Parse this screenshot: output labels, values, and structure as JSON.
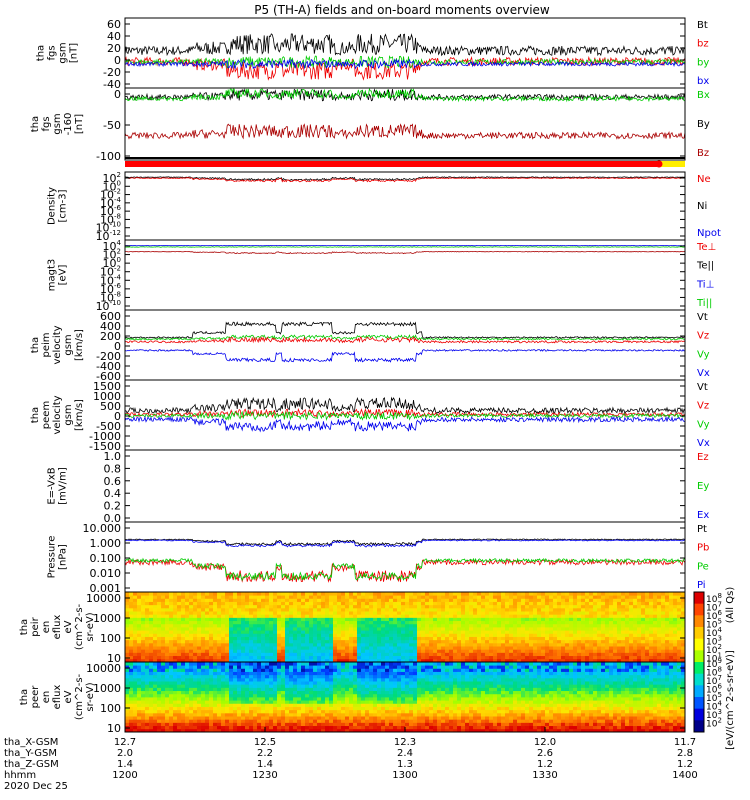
{
  "title": "P5 (TH-A) fields and on-board moments overview",
  "chart_data": [
    {
      "type": "line",
      "ylabel": [
        "tha",
        "fgs",
        "gsm",
        "[nT]"
      ],
      "yticks": [
        "60",
        "40",
        "20",
        "0",
        "-20",
        "-40"
      ],
      "ylim": [
        -40,
        65
      ],
      "legend": [
        {
          "label": "Bt",
          "color": "#000000"
        },
        {
          "label": "bz",
          "color": "#ee0000"
        },
        {
          "label": "by",
          "color": "#00cc00"
        },
        {
          "label": "bx",
          "color": "#0000ee"
        }
      ],
      "series": [
        {
          "name": "Bt",
          "color": "#000000",
          "base": 16,
          "noise": 7,
          "events": 1,
          "evAmp": 10
        },
        {
          "name": "bz",
          "color": "#ee0000",
          "base": 0,
          "noise": 6,
          "events": 1,
          "evAmp": -14
        },
        {
          "name": "by",
          "color": "#00cc00",
          "base": -1,
          "noise": 4,
          "events": 1,
          "evAmp": 0
        },
        {
          "name": "bx",
          "color": "#0000ee",
          "base": -4,
          "noise": 3,
          "events": 1,
          "evAmp": 0
        }
      ]
    },
    {
      "type": "line",
      "ylabel": [
        "tha",
        "fgs",
        "gsm",
        "-160",
        "[nT]"
      ],
      "yticks": [
        "0",
        "-50",
        "-100"
      ],
      "ylim": [
        -120,
        15
      ],
      "legend": [
        {
          "label": "Bx",
          "color": "#00cc00"
        },
        {
          "label": "By",
          "color": "#000000"
        },
        {
          "label": "Bz",
          "color": "#aa0000"
        }
      ],
      "series": [
        {
          "name": "By",
          "color": "#000000",
          "base": -2,
          "noise": 5,
          "events": 1,
          "evAmp": 4
        },
        {
          "name": "Bx",
          "color": "#00cc00",
          "base": -5,
          "noise": 4,
          "events": 1,
          "evAmp": 10
        },
        {
          "name": "Bz",
          "color": "#aa0000",
          "base": -74,
          "noise": 6,
          "events": 1,
          "evAmp": 8
        }
      ]
    },
    {
      "type": "line",
      "ylabel": [
        "Density",
        "[cm-3]"
      ],
      "yticks": [
        "10^2",
        "10^0",
        "10^-2",
        "10^-4",
        "10^-6",
        "10^-8",
        "10^-10",
        "10^-12"
      ],
      "ylim": [
        -13,
        2.5
      ],
      "log": true,
      "legend": [
        {
          "label": "Ne",
          "color": "#ee0000"
        },
        {
          "label": "Ni",
          "color": "#000000"
        },
        {
          "label": "Npot",
          "color": "#0000ee"
        }
      ],
      "series": [
        {
          "name": "Ni",
          "color": "#000000",
          "base": 1.3,
          "noise": 0.1,
          "events": 1,
          "evAmp": -0.5
        },
        {
          "name": "Ne",
          "color": "#ee0000",
          "base": 1.1,
          "noise": 0.1,
          "events": 1,
          "evAmp": -0.6
        }
      ]
    },
    {
      "type": "line",
      "ylabel": [
        "magt3",
        "[eV]"
      ],
      "yticks": [
        "10^4",
        "10^2",
        "10^0",
        "10^-2",
        "10^-4",
        "10^-6",
        "10^-8",
        "10^-10"
      ],
      "ylim": [
        -10.5,
        4.5
      ],
      "log": true,
      "legend": [
        {
          "label": "Te⊥",
          "color": "#ee0000"
        },
        {
          "label": "Te||",
          "color": "#000000"
        },
        {
          "label": "Ti⊥",
          "color": "#0000ee"
        },
        {
          "label": "Ti||",
          "color": "#00cc00"
        }
      ],
      "series": [
        {
          "name": "Ti",
          "color": "#0000ee",
          "base": 3.3,
          "noise": 0.05,
          "events": 0,
          "evAmp": 0
        },
        {
          "name": "Ti||",
          "color": "#00cc00",
          "base": 3.0,
          "noise": 0.05,
          "events": 0,
          "evAmp": 0
        },
        {
          "name": "Te",
          "color": "#aa0000",
          "base": 2.0,
          "noise": 0.05,
          "events": 1,
          "evAmp": -0.3
        }
      ]
    },
    {
      "type": "line",
      "ylabel": [
        "tha",
        "peim",
        "velocity",
        "gsm",
        "[km/s]"
      ],
      "yticks": [
        "600",
        "400",
        "200",
        "0",
        "-200",
        "-400",
        "-600"
      ],
      "ylim": [
        -650,
        650
      ],
      "legend": [
        {
          "label": "Vt",
          "color": "#000000"
        },
        {
          "label": "Vz",
          "color": "#ee0000"
        },
        {
          "label": "Vy",
          "color": "#00cc00"
        },
        {
          "label": "Vx",
          "color": "#0000ee"
        }
      ],
      "series": [
        {
          "name": "Vt",
          "color": "#000000",
          "base": 140,
          "noise": 15,
          "events": 1,
          "evAmp": 250
        },
        {
          "name": "Vy",
          "color": "#00cc00",
          "base": 110,
          "noise": 15,
          "events": 1,
          "evAmp": 40
        },
        {
          "name": "Vz",
          "color": "#ee0000",
          "base": 60,
          "noise": 20,
          "events": 1,
          "evAmp": 40
        },
        {
          "name": "Vx",
          "color": "#0000ee",
          "base": -100,
          "noise": 15,
          "events": 1,
          "evAmp": -180
        }
      ]
    },
    {
      "type": "line",
      "ylabel": [
        "tha",
        "peem",
        "velocity",
        "gsm",
        "[km/s]"
      ],
      "yticks": [
        "1500",
        "1000",
        "500",
        "0",
        "-500",
        "-1000",
        "-1500"
      ],
      "ylim": [
        -1550,
        1550
      ],
      "legend": [
        {
          "label": "Vt",
          "color": "#000000"
        },
        {
          "label": "Vz",
          "color": "#ee0000"
        },
        {
          "label": "Vy",
          "color": "#00cc00"
        },
        {
          "label": "Vx",
          "color": "#0000ee"
        }
      ],
      "series": [
        {
          "name": "Vt",
          "color": "#000000",
          "base": 200,
          "noise": 120,
          "events": 1,
          "evAmp": 300
        },
        {
          "name": "Vz",
          "color": "#ee0000",
          "base": 30,
          "noise": 80,
          "events": 1,
          "evAmp": 50
        },
        {
          "name": "Vy",
          "color": "#00cc00",
          "base": -30,
          "noise": 80,
          "events": 1,
          "evAmp": 0
        },
        {
          "name": "Vx",
          "color": "#0000ee",
          "base": -200,
          "noise": 100,
          "events": 1,
          "evAmp": -300
        }
      ]
    },
    {
      "type": "line",
      "ylabel": [
        "E=-VxB",
        "[mV/m]"
      ],
      "yticks": [
        "1.0",
        "0.8",
        "0.6",
        "0.4",
        "0.2",
        "0.0"
      ],
      "ylim": [
        0,
        1.0
      ],
      "legend": [
        {
          "label": "Ez",
          "color": "#ee0000"
        },
        {
          "label": "Ey",
          "color": "#00cc00"
        },
        {
          "label": "Ex",
          "color": "#0000ee"
        }
      ],
      "series": []
    },
    {
      "type": "line",
      "ylabel": [
        "Pressure",
        "[nPa]"
      ],
      "yticks": [
        "10.000",
        "1.000",
        "0.100",
        "0.010",
        "0.001"
      ],
      "ylim": [
        -3,
        1
      ],
      "log": true,
      "legend": [
        {
          "label": "Pt",
          "color": "#000000"
        },
        {
          "label": "Pb",
          "color": "#ee0000"
        },
        {
          "label": "Pe",
          "color": "#00cc00"
        },
        {
          "label": "Pi",
          "color": "#0000ee"
        }
      ],
      "series": [
        {
          "name": "Pt",
          "color": "#000000",
          "base": 0.0,
          "noise": 0.03,
          "events": 1,
          "evAmp": -0.25
        },
        {
          "name": "Pi",
          "color": "#0000ee",
          "base": -0.05,
          "noise": 0.03,
          "events": 1,
          "evAmp": -0.3
        },
        {
          "name": "Pb",
          "color": "#ee0000",
          "base": -1.3,
          "noise": 0.15,
          "events": 1,
          "evAmp": -0.8
        },
        {
          "name": "Pe",
          "color": "#00cc00",
          "base": -1.2,
          "noise": 0.1,
          "events": 1,
          "evAmp": -0.9
        }
      ]
    },
    {
      "type": "heatmap",
      "ylabel": [
        "tha",
        "peir",
        "en",
        "eflux",
        "eV",
        "(cm^2-s-",
        "sr-eV)"
      ],
      "yticks": [
        "10000",
        "1000",
        "100",
        "10"
      ],
      "ylim": [
        0.8,
        4.3
      ]
    },
    {
      "type": "heatmap",
      "ylabel": [
        "tha",
        "peer",
        "en",
        "eflux",
        "eV",
        "(cm^2-s-",
        "sr-eV)"
      ],
      "yticks": [
        "10000",
        "1000",
        "100",
        "10"
      ],
      "ylim": [
        0.8,
        4.3
      ]
    }
  ],
  "colorbar": {
    "label": "[eV/(cm^2-s-sr-eV)]",
    "sublabel": "(All Qs)",
    "ticks": [
      "10^8",
      "10^7",
      "10^6",
      "10^5",
      "10^4",
      "10^3",
      "10^2",
      "10^1"
    ],
    "ticks2": [
      "10^9",
      "10^8",
      "10^7",
      "10^6",
      "10^5",
      "10^4",
      "10^3",
      "10^2"
    ]
  },
  "xaxis": {
    "rows": [
      {
        "label": "tha_X-GSM",
        "values": [
          "12.7",
          "12.5",
          "12.3",
          "12.0",
          "11.7"
        ]
      },
      {
        "label": "tha_Y-GSM",
        "values": [
          "2.0",
          "2.2",
          "2.4",
          "2.6",
          "2.8"
        ]
      },
      {
        "label": "tha_Z-GSM",
        "values": [
          "1.4",
          "1.4",
          "1.3",
          "1.2",
          "1.2"
        ]
      },
      {
        "label": "hhmm",
        "values": [
          "1200",
          "1230",
          "1300",
          "1330",
          "1400"
        ]
      }
    ],
    "date": "2020 Dec 25"
  }
}
